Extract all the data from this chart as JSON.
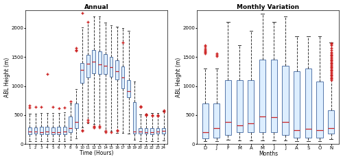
{
  "annual": {
    "title": "Annual",
    "xlabel": "Time (Hours)",
    "ylabel": "ABL Height (m)",
    "hours": [
      1,
      2,
      3,
      4,
      5,
      6,
      7,
      8,
      9,
      10,
      11,
      12,
      13,
      14,
      15,
      16,
      17,
      18,
      19,
      20,
      21,
      22,
      23,
      24
    ],
    "boxes": {
      "q1": [
        170,
        175,
        165,
        165,
        165,
        165,
        165,
        205,
        275,
        1050,
        1150,
        1220,
        1210,
        1210,
        1160,
        1110,
        960,
        800,
        185,
        175,
        175,
        170,
        175,
        185
      ],
      "q3": [
        285,
        290,
        295,
        295,
        290,
        295,
        300,
        475,
        700,
        1400,
        1540,
        1620,
        1600,
        1550,
        1500,
        1440,
        1340,
        1100,
        720,
        270,
        275,
        270,
        280,
        280
      ],
      "median": [
        210,
        215,
        205,
        210,
        205,
        205,
        210,
        280,
        385,
        1280,
        1380,
        1420,
        1375,
        1345,
        1320,
        1250,
        1145,
        910,
        220,
        210,
        205,
        205,
        210,
        225
      ],
      "whislo": [
        50,
        55,
        50,
        50,
        50,
        50,
        50,
        75,
        100,
        290,
        360,
        340,
        290,
        225,
        225,
        195,
        195,
        175,
        75,
        55,
        55,
        50,
        55,
        65
      ],
      "whishi": [
        520,
        525,
        530,
        535,
        535,
        535,
        545,
        695,
        945,
        2005,
        2105,
        2200,
        2195,
        2095,
        2045,
        2015,
        1995,
        1945,
        1075,
        515,
        525,
        535,
        535,
        565
      ],
      "fliers_high": [
        [
          625,
          660
        ],
        [
          635
        ],
        [
          645
        ],
        [
          1205
        ],
        [
          645
        ],
        [
          615
        ],
        [
          625
        ],
        [
          735
        ],
        [
          1605,
          1625,
          1655
        ],
        [
          2255
        ],
        [
          2105
        ],
        [],
        [],
        [],
        [],
        [],
        [
          1755
        ],
        [],
        [],
        [
          645,
          655,
          645
        ],
        [
          515,
          495,
          515,
          495
        ],
        [
          495,
          485
        ],
        [
          495,
          485,
          485
        ],
        [
          555,
          585
        ]
      ],
      "fliers_low": [
        [],
        [],
        [],
        [],
        [],
        [],
        [],
        [],
        [],
        [
          225,
          235
        ],
        [
          385,
          415
        ],
        [
          285,
          305,
          285
        ],
        [
          285,
          305
        ],
        [
          205,
          225
        ],
        [
          205
        ],
        [
          225,
          235
        ],
        [],
        [],
        [],
        [],
        [],
        [],
        [],
        []
      ]
    }
  },
  "monthly": {
    "title": "Monthly Variation",
    "xlabel": "Months",
    "ylabel": "ABL Height (m)",
    "months": [
      "D",
      "J",
      "F",
      "M",
      "A",
      "M",
      "J",
      "J",
      "A",
      "S",
      "O",
      "N"
    ],
    "boxes": {
      "q1": [
        100,
        105,
        155,
        205,
        205,
        205,
        205,
        155,
        105,
        105,
        105,
        185
      ],
      "q3": [
        700,
        705,
        1105,
        1105,
        1105,
        1450,
        1450,
        1350,
        1250,
        1300,
        1080,
        580
      ],
      "median": [
        200,
        270,
        375,
        325,
        355,
        470,
        460,
        375,
        235,
        265,
        245,
        270
      ],
      "whislo": [
        50,
        50,
        70,
        60,
        60,
        60,
        60,
        60,
        50,
        50,
        50,
        80
      ],
      "whishi": [
        1300,
        1305,
        2105,
        1705,
        1950,
        2250,
        2105,
        2200,
        1850,
        1850,
        1850,
        1750
      ],
      "fliers_high": [
        [
          1560,
          1580,
          1600,
          1620,
          1640,
          1680,
          1700
        ],
        [
          1510,
          1540,
          1560
        ],
        [],
        [],
        [],
        [],
        [],
        [],
        [],
        [],
        [],
        [
          1100,
          1120,
          1140,
          1160,
          1180,
          1200,
          1220,
          1240,
          1260,
          1280,
          1300,
          1320,
          1340,
          1360,
          1380,
          1400,
          1420,
          1440,
          1460,
          1480,
          1500,
          1520,
          1540,
          1560,
          1580,
          1620,
          1660,
          1700,
          1720,
          1740
        ]
      ],
      "fliers_low": [
        [],
        [],
        [],
        [],
        [],
        [],
        [],
        [],
        [],
        [],
        [],
        []
      ]
    }
  },
  "box_facecolor": "#DDEEFF",
  "box_edgecolor": "#5577AA",
  "median_color": "#CC2222",
  "flier_color": "#CC2222",
  "whisker_color": "#333333",
  "cap_color": "#333333",
  "background_color": "#FFFFFF",
  "ylim": [
    0,
    2300
  ],
  "figsize": [
    5.0,
    2.35
  ],
  "dpi": 100
}
